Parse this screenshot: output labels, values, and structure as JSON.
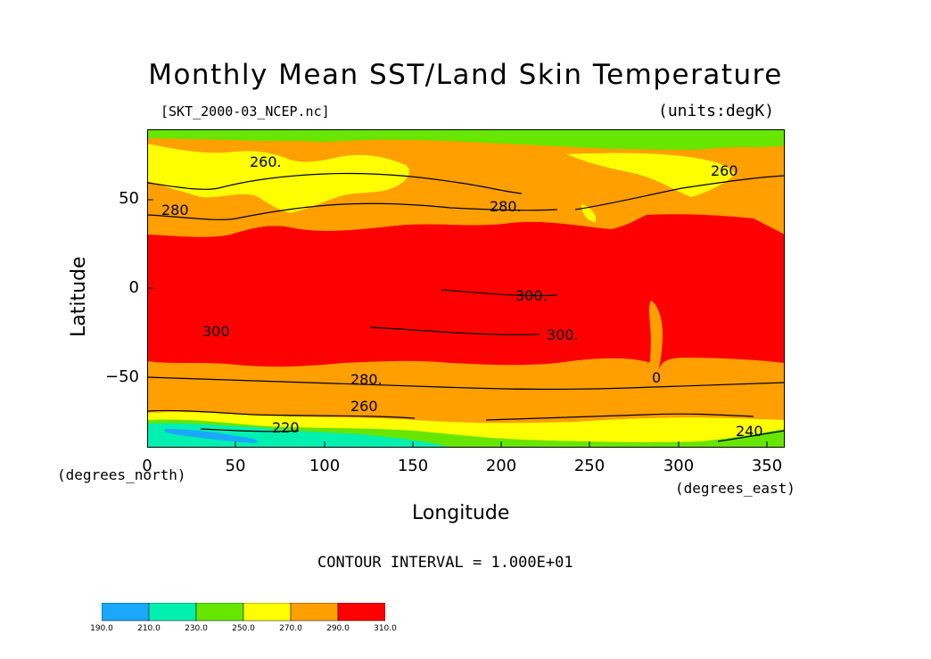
{
  "title": "Monthly Mean SST/Land Skin Temperature",
  "file_label": "[SKT_2000-03_NCEP.nc]",
  "units_label": "(units:degK)",
  "y_axis": {
    "label": "Latitude",
    "units": "(degrees_north)",
    "ticks": [
      "50",
      "0",
      "−50"
    ],
    "tick_values": [
      50,
      0,
      -50
    ],
    "range": [
      -90,
      90
    ]
  },
  "x_axis": {
    "label": "Longitude",
    "units": "(degrees_east)",
    "ticks": [
      "0",
      "50",
      "100",
      "150",
      "200",
      "250",
      "300",
      "350"
    ],
    "tick_values": [
      0,
      50,
      100,
      150,
      200,
      250,
      300,
      350
    ],
    "range": [
      0,
      360
    ]
  },
  "contour_interval": "CONTOUR INTERVAL = 1.000E+01",
  "contour_labels": [
    "260.",
    "260",
    "280",
    "280.",
    "300.",
    "300.",
    "300",
    "280.",
    "260",
    "220",
    "240",
    "0"
  ],
  "colorbar": {
    "labels": [
      "190.0",
      "210.0",
      "230.0",
      "250.0",
      "270.0",
      "290.0",
      "310.0"
    ],
    "colors": [
      "#1aa8ff",
      "#00f0b0",
      "#66e600",
      "#ffff00",
      "#ff9f00",
      "#ff0000"
    ]
  },
  "colors": {
    "blue": "#1aa8ff",
    "cyan": "#00f0b0",
    "green": "#66e600",
    "yellow": "#ffff00",
    "orange": "#ff9f00",
    "red": "#ff0000"
  }
}
